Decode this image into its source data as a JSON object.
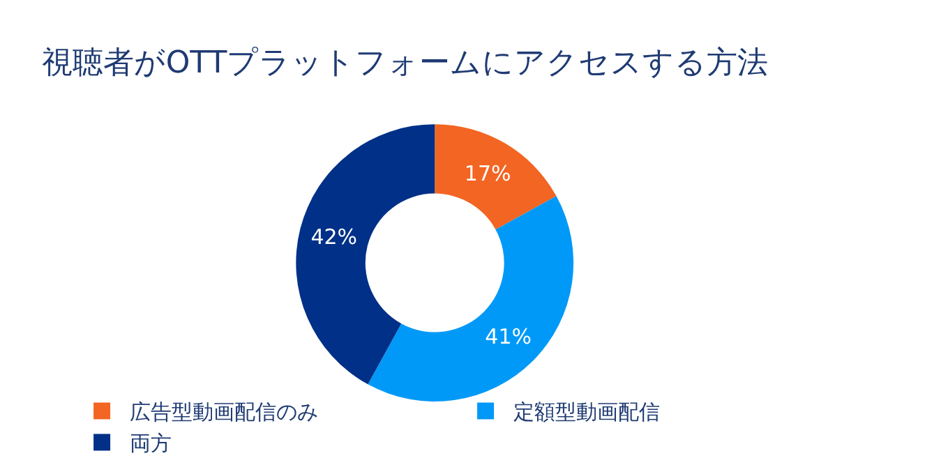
{
  "chart_data": {
    "type": "donut",
    "title": "視聴者がOTTプラットフォームにアクセスする方法",
    "categories": [
      "広告型動画配信のみ",
      "定額型動画配信",
      "両方"
    ],
    "values": [
      17,
      41,
      42
    ],
    "value_labels": [
      "17%",
      "41%",
      "42%"
    ],
    "colors": [
      "#f26522",
      "#0099f7",
      "#003087"
    ],
    "legend": "bottom"
  }
}
